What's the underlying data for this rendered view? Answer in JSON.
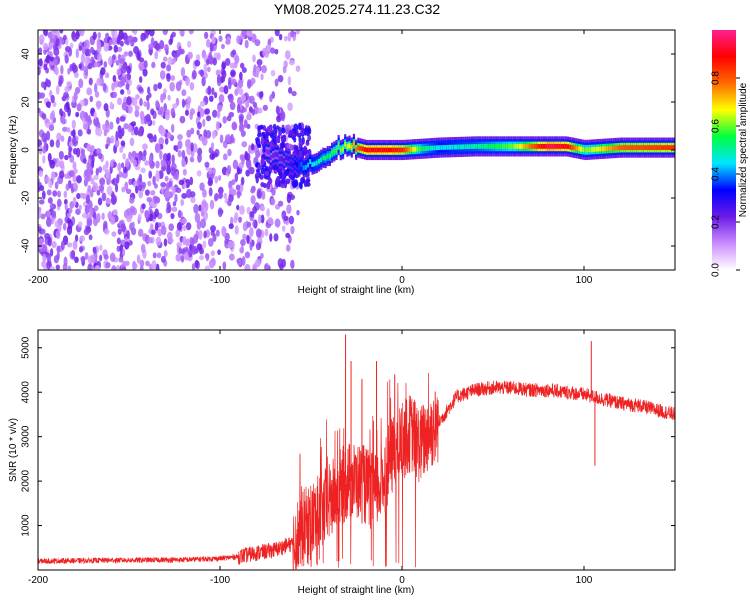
{
  "title": "YM08.2025.274.11.23.C32",
  "colors": {
    "axis": "#000000",
    "background": "#ffffff",
    "snr_line": "#ee2222",
    "spectrogram_noise": "#6a1be8"
  },
  "chart_data": [
    {
      "name": "spectrogram",
      "type": "heatmap",
      "title": "YM08.2025.274.11.23.C32",
      "xlabel": "Height of straight line (km)",
      "ylabel": "Frequency (Hz)",
      "xlim": [
        -200,
        150
      ],
      "ylim": [
        -50,
        50
      ],
      "xticks": [
        -200,
        -100,
        0,
        100
      ],
      "yticks": [
        -40,
        -20,
        0,
        20,
        40
      ],
      "ridge": {
        "description": "carrier line near 0 Hz emerging from broadband noise",
        "x": [
          -75,
          -65,
          -60,
          -55,
          -50,
          -45,
          -40,
          -35,
          -30,
          -25,
          -20,
          -10,
          0,
          10,
          20,
          40,
          60,
          80,
          90,
          100,
          120,
          150
        ],
        "y": [
          -2,
          -4,
          -6,
          -7,
          -6,
          -4,
          -2,
          1,
          2,
          1,
          0,
          0,
          0,
          0.5,
          1,
          1.5,
          1.5,
          1.5,
          1.5,
          0,
          1,
          1
        ],
        "amplitude": [
          0.2,
          0.25,
          0.3,
          0.4,
          0.45,
          0.5,
          0.55,
          0.6,
          0.65,
          0.8,
          0.9,
          0.9,
          0.85,
          0.55,
          0.45,
          0.5,
          0.6,
          0.95,
          0.9,
          0.6,
          0.8,
          0.85
        ]
      },
      "noise_region": {
        "x_from": -200,
        "x_to": -65,
        "mean_amplitude": 0.2
      }
    },
    {
      "name": "colorbar",
      "type": "colorbar",
      "label": "Normalized spectral amplitude",
      "range": [
        0,
        1
      ],
      "ticks": [
        0.0,
        0.2,
        0.4,
        0.6,
        0.8
      ],
      "tick_labels": [
        "0.0",
        "0.2",
        "0.4",
        "0.6",
        "0.8"
      ],
      "gradient_stops": [
        "#ffffff",
        "#c98cff",
        "#6a1be8",
        "#0000ff",
        "#00e5ff",
        "#00ff40",
        "#ffff00",
        "#ff6a00",
        "#ff0000",
        "#ff2090"
      ]
    },
    {
      "name": "snr",
      "type": "line",
      "xlabel": "Height of straight line (km)",
      "ylabel": "SNR (10 * v/v)",
      "xlim": [
        -200,
        150
      ],
      "ylim": [
        0,
        5400
      ],
      "xticks": [
        -200,
        -100,
        0,
        100
      ],
      "yticks": [
        1000,
        2000,
        3000,
        4000,
        5000
      ],
      "series": [
        {
          "name": "SNR",
          "x": [
            -200,
            -160,
            -120,
            -100,
            -90,
            -80,
            -70,
            -60,
            -55,
            -50,
            -45,
            -40,
            -35,
            -30,
            -25,
            -20,
            -15,
            -10,
            -5,
            0,
            5,
            10,
            15,
            20,
            25,
            30,
            40,
            50,
            60,
            70,
            80,
            90,
            100,
            105,
            110,
            120,
            130,
            140,
            150
          ],
          "values": [
            200,
            220,
            230,
            260,
            300,
            380,
            450,
            600,
            900,
            1100,
            1300,
            1500,
            1800,
            2000,
            2000,
            1900,
            1700,
            2100,
            2600,
            2900,
            3100,
            2800,
            3100,
            3300,
            3600,
            3900,
            4050,
            4100,
            4100,
            4050,
            4050,
            4000,
            3950,
            3900,
            3850,
            3750,
            3700,
            3600,
            3500
          ]
        }
      ],
      "spikes": [
        {
          "x": -31,
          "y": 5300
        },
        {
          "x": -28,
          "y": 4700
        },
        {
          "x": -22,
          "y": 4300
        },
        {
          "x": -14,
          "y": 4700
        },
        {
          "x": -4,
          "y": 4400
        },
        {
          "x": 104,
          "y": 5150
        },
        {
          "x": 106,
          "y": 2350
        }
      ]
    }
  ]
}
